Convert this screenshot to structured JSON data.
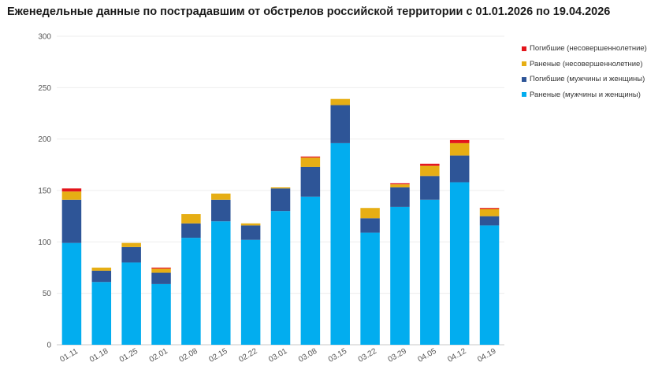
{
  "chart_data": {
    "type": "bar",
    "stacked": true,
    "title": "Еженедельные данные по пострадавшим от обстрелов российской территории с 01.01.2026 по 19.04.2026",
    "xlabel": "",
    "ylabel": "",
    "ylim": [
      0,
      300
    ],
    "yticks": [
      "0",
      "50",
      "100",
      "150",
      "200",
      "250",
      "300"
    ],
    "grid": true,
    "legend_position": "top-right",
    "categories": [
      "01.11",
      "01.18",
      "01.25",
      "02.01",
      "02.08",
      "02.15",
      "02.22",
      "03.01",
      "03.08",
      "03.15",
      "03.22",
      "03.29",
      "04.05",
      "04.12",
      "04.19"
    ],
    "series": [
      {
        "name": "Раненые (мужчины и женщины)",
        "color": "#02adef",
        "values": [
          99,
          61,
          80,
          59,
          104,
          120,
          102,
          130,
          144,
          196,
          109,
          134,
          141,
          158,
          116
        ]
      },
      {
        "name": "Погибшие (мужчины и женщины)",
        "color": "#2e5597",
        "values": [
          42,
          11,
          15,
          11,
          14,
          21,
          14,
          22,
          29,
          37,
          14,
          19,
          23,
          26,
          9
        ]
      },
      {
        "name": "Раненые (несовершеннолетние)",
        "color": "#e6ae14",
        "values": [
          8,
          3,
          4,
          4,
          9,
          6,
          2,
          1,
          9,
          6,
          10,
          3,
          10,
          12,
          7
        ]
      },
      {
        "name": "Погибшие (несовершеннолетние)",
        "color": "#e3151b",
        "values": [
          3,
          0,
          0,
          1,
          0,
          0,
          0,
          0,
          1,
          0,
          0,
          1,
          2,
          3,
          1
        ]
      }
    ]
  }
}
